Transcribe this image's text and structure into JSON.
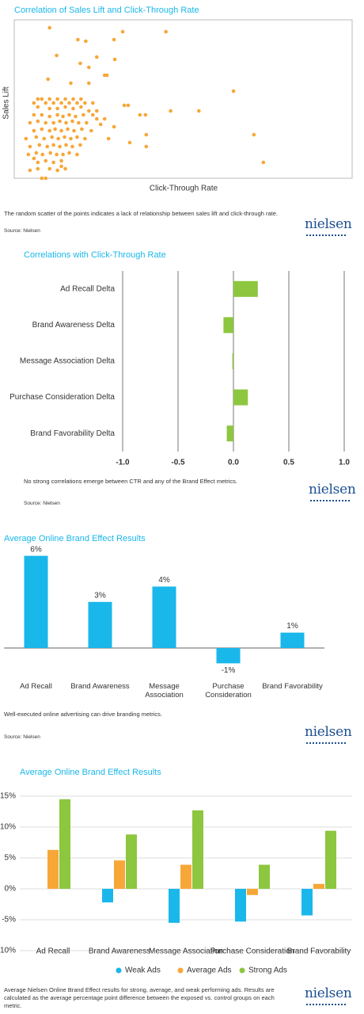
{
  "chart_data": [
    {
      "type": "scatter",
      "title": "Correlation of Sales Lift and Click-Through Rate",
      "x_label": "Click-Through Rate",
      "y_label": "Sales Lift",
      "color": "#f7a738",
      "xlim": [
        0,
        430
      ],
      "ylim": [
        0,
        200
      ],
      "x": [
        45,
        138,
        193,
        81,
        127,
        91,
        54,
        105,
        128,
        84,
        95,
        115,
        118,
        43,
        72,
        95,
        279,
        305,
        317,
        235,
        199,
        167,
        160,
        145,
        140,
        168,
        168,
        147,
        127,
        115,
        105,
        20,
        35,
        40,
        60,
        25,
        30,
        35,
        45,
        55,
        65,
        75,
        85,
        25,
        40,
        50,
        60,
        70,
        80,
        90,
        100,
        30,
        45,
        55,
        65,
        75,
        85,
        95,
        105,
        25,
        35,
        45,
        55,
        62,
        70,
        78,
        88,
        100,
        20,
        30,
        40,
        50,
        58,
        66,
        74,
        82,
        92,
        110,
        25,
        35,
        45,
        52,
        60,
        68,
        76,
        86,
        98,
        15,
        28,
        38,
        48,
        56,
        64,
        72,
        80,
        90,
        120,
        20,
        32,
        42,
        50,
        58,
        66,
        74,
        84,
        18,
        28,
        36,
        46,
        54,
        62,
        70,
        80,
        30,
        40,
        50,
        60,
        45,
        55,
        65,
        30
      ],
      "y": [
        190,
        185,
        185,
        175,
        175,
        173,
        155,
        153,
        150,
        145,
        140,
        130,
        130,
        125,
        120,
        120,
        110,
        55,
        20,
        85,
        85,
        80,
        80,
        92,
        92,
        55,
        40,
        45,
        65,
        75,
        75,
        10,
        0,
        0,
        15,
        25,
        100,
        100,
        100,
        100,
        100,
        100,
        100,
        95,
        95,
        95,
        95,
        95,
        95,
        95,
        95,
        90,
        88,
        88,
        90,
        88,
        90,
        85,
        85,
        80,
        80,
        78,
        80,
        78,
        80,
        78,
        80,
        80,
        70,
        72,
        70,
        70,
        72,
        70,
        72,
        70,
        70,
        68,
        60,
        62,
        60,
        62,
        60,
        62,
        60,
        62,
        60,
        50,
        52,
        50,
        52,
        50,
        52,
        50,
        52,
        50,
        50,
        40,
        42,
        40,
        42,
        40,
        42,
        40,
        42,
        30,
        32,
        30,
        32,
        30,
        30,
        32,
        30,
        20,
        22,
        20,
        22,
        12,
        10,
        12,
        12
      ]
    },
    {
      "type": "bar",
      "orientation": "horizontal",
      "title": "Correlations with Click-Through Rate",
      "color": "#8dc63f",
      "grid": true,
      "categories": [
        "Ad Recall Delta",
        "Brand Awareness Delta",
        "Message Association Delta",
        "Purchase Consideration Delta",
        "Brand Favorability Delta"
      ],
      "values": [
        0.22,
        -0.09,
        -0.01,
        0.13,
        -0.06
      ],
      "xlim": [
        -1,
        1
      ],
      "xticks": [
        {
          "value": -1,
          "label": "-1.0"
        },
        -0.5,
        {
          "value": 0,
          "label": "0.0"
        },
        0.5,
        {
          "value": 1,
          "label": "1.0"
        }
      ]
    },
    {
      "type": "bar",
      "title": "Average Online Brand Effect Results",
      "color": "#1ab7ea",
      "categories": [
        "Ad Recall",
        "Brand Awareness",
        "Message Association",
        "Purchase Consideration",
        "Brand Favorability"
      ],
      "values": [
        6,
        3,
        4,
        -1,
        1
      ],
      "value_labels": [
        "6%",
        "3%",
        "4%",
        "-1%",
        "1%"
      ],
      "ylim": [
        -1.6,
        6.6
      ]
    },
    {
      "type": "bar",
      "title": "Average Online Brand Effect Results",
      "grid": true,
      "legend": "bottom",
      "categories": [
        "Ad Recall",
        "Brand Awareness",
        "Message Association",
        "Purchase Consideration",
        "Brand Favorability"
      ],
      "series": [
        {
          "name": "Weak Ads",
          "color": "#1ab7ea",
          "values": [
            0,
            -2.2,
            -5.5,
            -5.3,
            -4.3
          ]
        },
        {
          "name": "Average Ads",
          "color": "#f7a738",
          "values": [
            6.3,
            4.6,
            3.9,
            -1.0,
            0.8
          ]
        },
        {
          "name": "Strong Ads",
          "color": "#8dc63f",
          "values": [
            14.5,
            8.8,
            12.7,
            3.9,
            9.4
          ]
        }
      ],
      "ylim": [
        -10,
        15
      ],
      "yticks": [
        {
          "value": -10,
          "label": "-10%"
        },
        {
          "value": -5,
          "label": "-5%"
        },
        {
          "value": 0,
          "label": "0%"
        },
        {
          "value": 5,
          "label": "5%"
        },
        {
          "value": 10,
          "label": "10%"
        },
        {
          "value": 15,
          "label": "15%"
        }
      ]
    }
  ],
  "captions": [
    "The random scatter of the points indicates a lack of relationship between sales lift and click-through rate.",
    "No strong correlations emerge between CTR and any of the Brand Effect metrics.",
    "Well-executed online advertising can drive branding metrics.",
    "Average Nielsen Online Brand Effect results for strong, average, and weak performing  ads. Results are calculated as the average percentage point difference between the exposed vs. control groups on each metric."
  ],
  "sources": [
    "Source: Nielsen",
    "Source: Nielsen",
    "Source: Nielsen"
  ],
  "logo": "nielsen"
}
